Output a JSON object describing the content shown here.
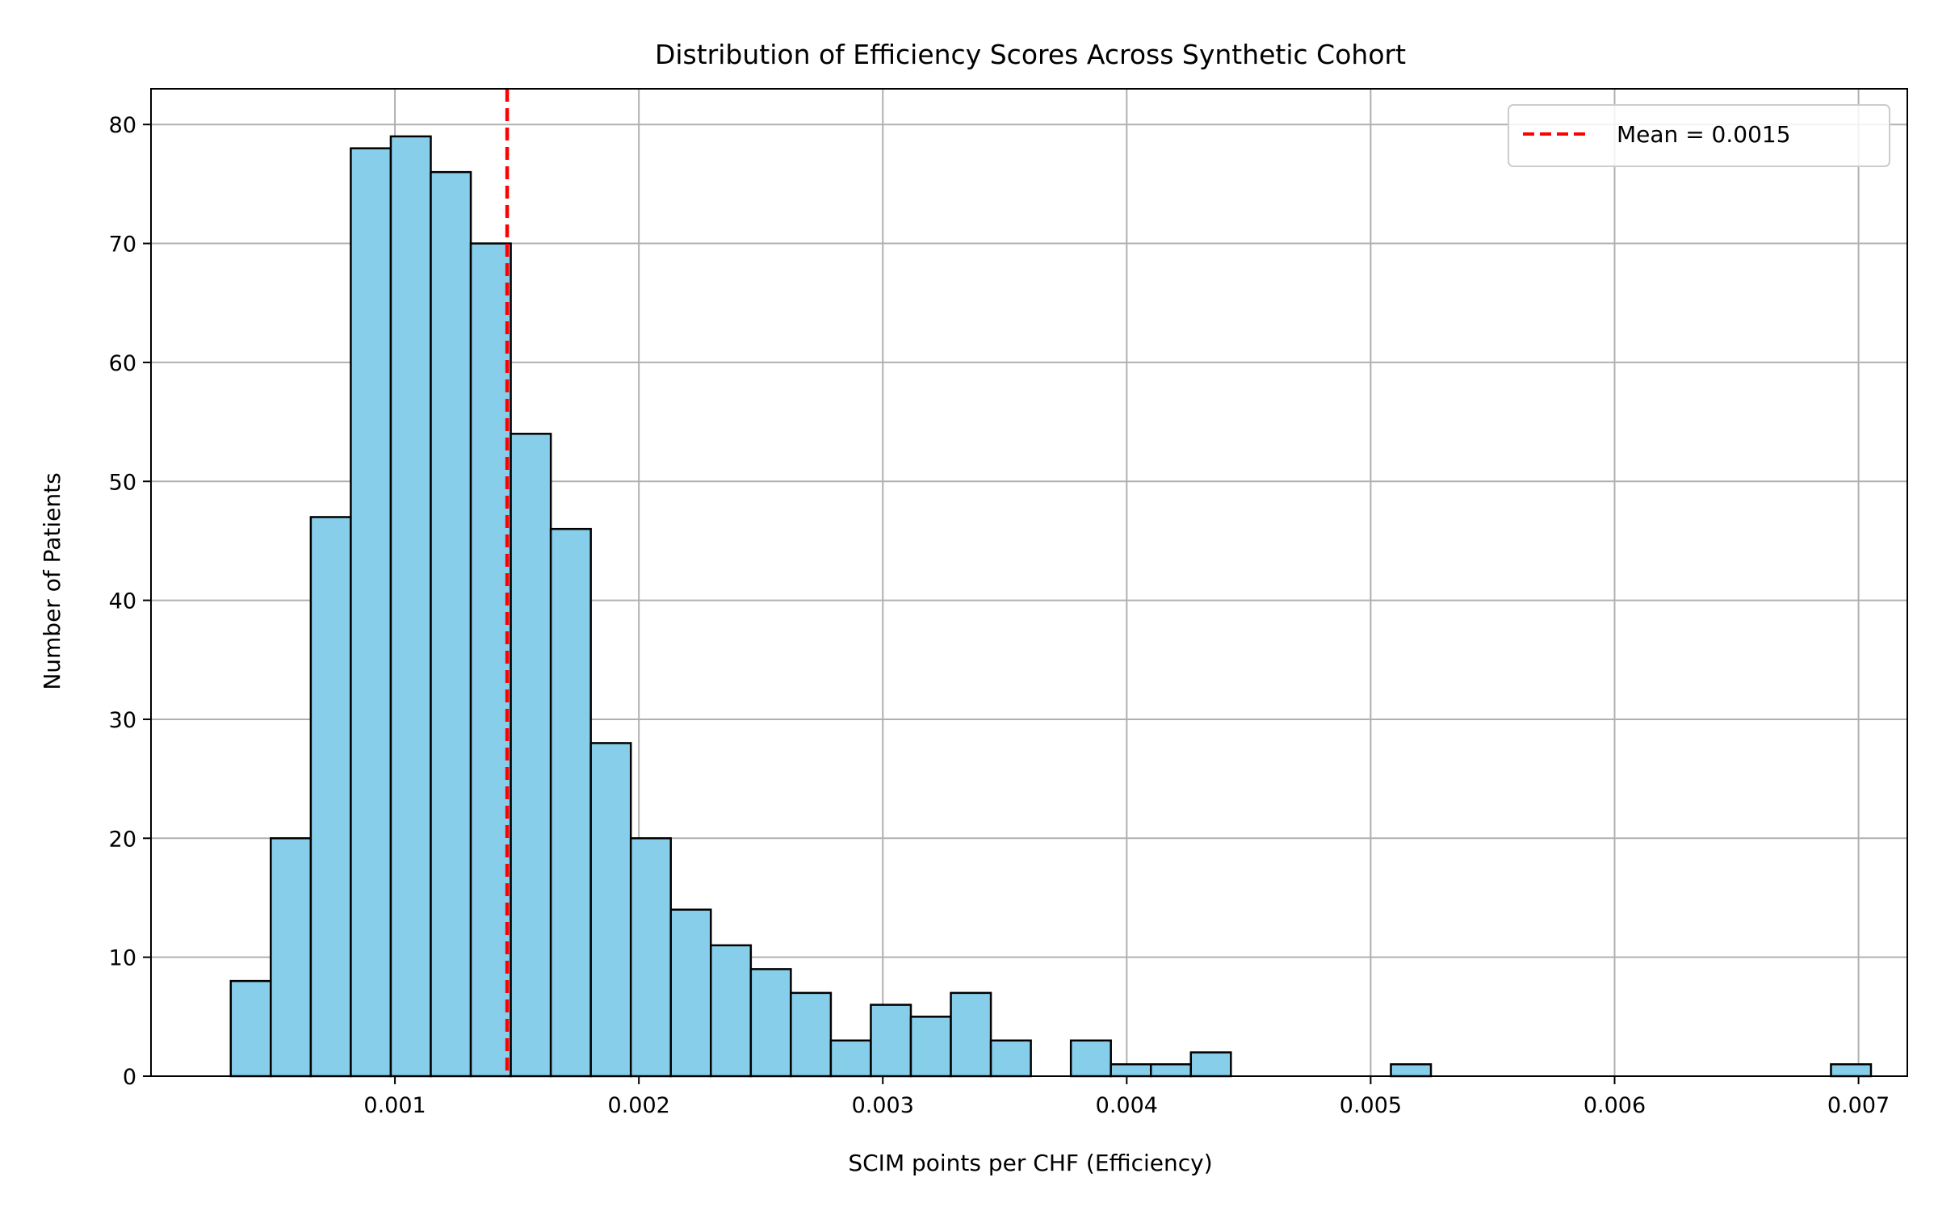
{
  "chart_data": {
    "type": "bar",
    "title": "Distribution of Efficiency Scores Across Synthetic Cohort",
    "xlabel": "SCIM points per CHF (Efficiency)",
    "ylabel": "Number of Patients",
    "xlim": [
      0.0,
      0.0072
    ],
    "ylim": [
      0,
      83
    ],
    "xticks": [
      0.001,
      0.002,
      0.003,
      0.004,
      0.005,
      0.006,
      0.007
    ],
    "xtick_labels": [
      "0.001",
      "0.002",
      "0.003",
      "0.004",
      "0.005",
      "0.006",
      "0.007"
    ],
    "yticks": [
      0,
      10,
      20,
      30,
      40,
      50,
      60,
      70,
      80
    ],
    "ytick_labels": [
      "0",
      "10",
      "20",
      "30",
      "40",
      "50",
      "60",
      "70",
      "80"
    ],
    "grid": true,
    "bin_start": 0.000327,
    "bin_width": 0.000164,
    "counts": [
      8,
      20,
      47,
      78,
      79,
      76,
      70,
      54,
      46,
      28,
      20,
      14,
      11,
      9,
      7,
      3,
      6,
      5,
      7,
      3,
      0,
      3,
      1,
      1,
      2,
      0,
      0,
      0,
      0,
      1,
      0,
      0,
      0,
      0,
      0,
      0,
      0,
      0,
      0,
      0,
      1
    ],
    "bar_color": "#87ceeb",
    "mean_line": {
      "value": 0.00146,
      "label": "Mean = 0.0015",
      "color": "#ff0000"
    },
    "legend_position": "top-right"
  }
}
